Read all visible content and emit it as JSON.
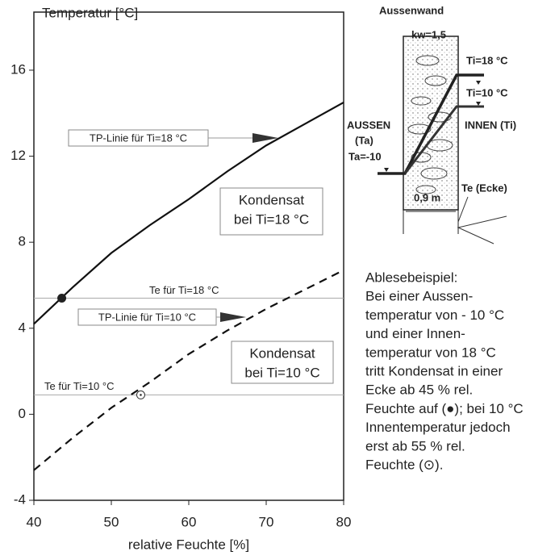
{
  "chart_data": {
    "type": "line",
    "ylabel": "Temperatur [°C]",
    "xlabel": "relative Feuchte [%]",
    "x": [
      40,
      45,
      50,
      55,
      60,
      65,
      70,
      75,
      80
    ],
    "series": [
      {
        "name": "TP-Linie für Ti=18 °C",
        "color": "#111111",
        "dash": false,
        "values": [
          4.2,
          5.9,
          7.5,
          8.8,
          10.0,
          11.3,
          12.5,
          13.5,
          14.5
        ]
      },
      {
        "name": "TP-Linie für Ti=10 °C",
        "color": "#111111",
        "dash": true,
        "values": [
          -2.6,
          -1.1,
          0.3,
          1.5,
          2.8,
          3.9,
          4.9,
          5.8,
          6.7
        ]
      }
    ],
    "reference_lines": [
      {
        "label": "Te für Ti=18 °C",
        "value": 5.4
      },
      {
        "label": "Te für Ti=10 °C",
        "value": 0.9
      }
    ],
    "markers": [
      {
        "x": 43.6,
        "y": 5.4,
        "style": "filled"
      },
      {
        "x": 53.8,
        "y": 0.9,
        "style": "open"
      }
    ],
    "regions": [
      {
        "lines": [
          "Kondensat",
          "bei Ti=18 °C"
        ]
      },
      {
        "lines": [
          "Kondensat",
          "bei Ti=10 °C"
        ]
      }
    ],
    "xlim": [
      40,
      80
    ],
    "ylim": [
      -4,
      18.7
    ],
    "xticks": [
      40,
      50,
      60,
      70,
      80
    ],
    "yticks": [
      -4,
      0,
      4,
      8,
      12,
      16
    ]
  },
  "wall_diagram": {
    "title": "Aussenwand",
    "conductivity": "kw=1,5",
    "inside_18": "Ti=18 °C",
    "inside_10": "Ti=10 °C",
    "outside": [
      "AUSSEN",
      "(Ta)",
      "Ta=-10"
    ],
    "inside": "INNEN (Ti)",
    "thickness": "0,9 m",
    "corner": "Te (Ecke)"
  },
  "note": {
    "lines": [
      "Ablesebeispiel:",
      "Bei einer Aussen-",
      "temperatur von - 10 °C",
      "und einer Innen-",
      "temperatur von 18 °C",
      "tritt Kondensat in einer",
      "Ecke ab 45 % rel.",
      "Feuchte auf (●); bei 10 °C",
      "Innentemperatur jedoch",
      "erst ab 55 % rel.",
      "Feuchte (⊙)."
    ]
  }
}
